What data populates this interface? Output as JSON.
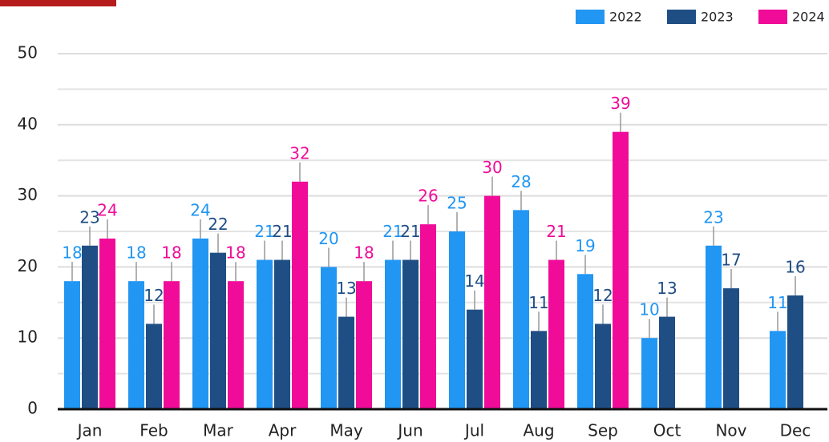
{
  "chart_data": {
    "type": "bar",
    "categories": [
      "Jan",
      "Feb",
      "Mar",
      "Apr",
      "May",
      "Jun",
      "Jul",
      "Aug",
      "Sep",
      "Oct",
      "Nov",
      "Dec"
    ],
    "series": [
      {
        "name": "2022",
        "color": "#2196f3",
        "values": [
          18,
          18,
          24,
          21,
          20,
          21,
          25,
          28,
          19,
          10,
          23,
          11
        ]
      },
      {
        "name": "2023",
        "color": "#1f4e85",
        "values": [
          23,
          12,
          22,
          21,
          13,
          21,
          14,
          11,
          12,
          13,
          17,
          16
        ]
      },
      {
        "name": "2024",
        "color": "#f00c98",
        "values": [
          24,
          18,
          18,
          32,
          18,
          26,
          30,
          21,
          39,
          null,
          null,
          null
        ]
      }
    ],
    "ylim": [
      0,
      50
    ],
    "yticks": [
      0,
      10,
      20,
      30,
      40,
      50
    ],
    "minor_yticks": [
      5,
      15,
      25,
      35,
      45
    ],
    "grid": true,
    "legend": "top-right"
  }
}
